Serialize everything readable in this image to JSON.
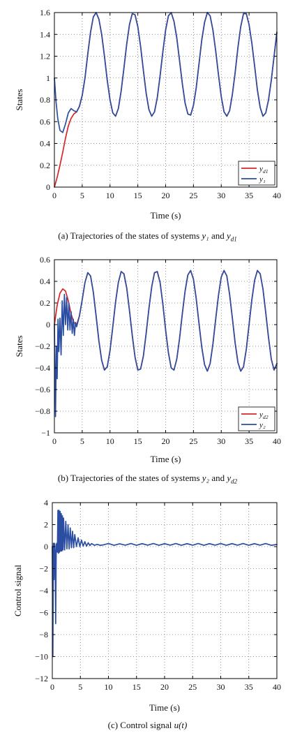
{
  "chart_data": [
    {
      "id": "a",
      "type": "line",
      "title": "",
      "xlabel": "Time (s)",
      "ylabel": "States",
      "xlim": [
        0,
        40
      ],
      "ylim": [
        0,
        1.6
      ],
      "xticks": [
        "0",
        "5",
        "10",
        "15",
        "20",
        "25",
        "30",
        "35",
        "40"
      ],
      "yticks": [
        "0",
        "0.2",
        "0.4",
        "0.6",
        "0.8",
        "1",
        "1.2",
        "1.4",
        "1.6"
      ],
      "grid": true,
      "legend_position": "bottom-right",
      "caption": {
        "prefix": "(a) Trajectories of the states of systems ",
        "sym1": "y₁",
        "mid": " and ",
        "sym2": "y_d1"
      },
      "series": [
        {
          "name": "y_d1",
          "color": "#d62728",
          "x": [
            0,
            0.5,
            1,
            1.5,
            2,
            2.5,
            3,
            3.5,
            4,
            4.5,
            5,
            5.5,
            6,
            6.5,
            7,
            7.5,
            8,
            8.5,
            9,
            9.5,
            10,
            10.5,
            11,
            11.5,
            12,
            12.5,
            13,
            13.5,
            14,
            14.5,
            15,
            15.5,
            16,
            16.5,
            17,
            17.5,
            18,
            18.5,
            19,
            19.5,
            20,
            20.5,
            21,
            21.5,
            22,
            22.5,
            23,
            23.5,
            24,
            24.5,
            25,
            25.5,
            26,
            26.5,
            27,
            27.5,
            28,
            28.5,
            29,
            29.5,
            30,
            30.5,
            31,
            31.5,
            32,
            32.5,
            33,
            33.5,
            34,
            34.5,
            35,
            35.5,
            36,
            36.5,
            37,
            37.5,
            38,
            38.5,
            39,
            39.5,
            40
          ],
          "y": [
            0,
            0.09,
            0.2,
            0.32,
            0.45,
            0.56,
            0.63,
            0.67,
            0.69,
            0.74,
            0.84,
            1.0,
            1.22,
            1.42,
            1.56,
            1.6,
            1.54,
            1.4,
            1.2,
            0.98,
            0.8,
            0.68,
            0.65,
            0.72,
            0.88,
            1.09,
            1.31,
            1.49,
            1.59,
            1.58,
            1.47,
            1.29,
            1.07,
            0.86,
            0.71,
            0.65,
            0.69,
            0.82,
            1.02,
            1.24,
            1.44,
            1.57,
            1.6,
            1.52,
            1.37,
            1.16,
            0.95,
            0.77,
            0.67,
            0.66,
            0.75,
            0.91,
            1.13,
            1.35,
            1.51,
            1.6,
            1.57,
            1.44,
            1.25,
            1.03,
            0.83,
            0.69,
            0.65,
            0.7,
            0.85,
            1.05,
            1.28,
            1.47,
            1.59,
            1.59,
            1.49,
            1.32,
            1.11,
            0.89,
            0.73,
            0.65,
            0.68,
            0.8,
            0.98,
            1.2,
            1.42
          ]
        },
        {
          "name": "y₁",
          "color": "#2b4ea2",
          "x": [
            0,
            0.3,
            0.6,
            1,
            1.5,
            2,
            2.5,
            3,
            3.5,
            4,
            4.5,
            5,
            5.5,
            6,
            6.5,
            7,
            7.5,
            8,
            8.5,
            9,
            9.5,
            10,
            10.5,
            11,
            11.5,
            12,
            12.5,
            13,
            13.5,
            14,
            14.5,
            15,
            15.5,
            16,
            16.5,
            17,
            17.5,
            18,
            18.5,
            19,
            19.5,
            20,
            20.5,
            21,
            21.5,
            22,
            22.5,
            23,
            23.5,
            24,
            24.5,
            25,
            25.5,
            26,
            26.5,
            27,
            27.5,
            28,
            28.5,
            29,
            29.5,
            30,
            30.5,
            31,
            31.5,
            32,
            32.5,
            33,
            33.5,
            34,
            34.5,
            35,
            35.5,
            36,
            36.5,
            37,
            37.5,
            38,
            38.5,
            39,
            39.5,
            40
          ],
          "y": [
            1.0,
            0.78,
            0.63,
            0.52,
            0.5,
            0.58,
            0.68,
            0.72,
            0.7,
            0.69,
            0.74,
            0.84,
            1.0,
            1.22,
            1.42,
            1.56,
            1.6,
            1.54,
            1.4,
            1.2,
            0.98,
            0.8,
            0.68,
            0.65,
            0.72,
            0.88,
            1.09,
            1.31,
            1.49,
            1.59,
            1.58,
            1.47,
            1.29,
            1.07,
            0.86,
            0.71,
            0.65,
            0.69,
            0.82,
            1.02,
            1.24,
            1.44,
            1.57,
            1.6,
            1.52,
            1.37,
            1.16,
            0.95,
            0.77,
            0.67,
            0.66,
            0.75,
            0.91,
            1.13,
            1.35,
            1.51,
            1.6,
            1.57,
            1.44,
            1.25,
            1.03,
            0.83,
            0.69,
            0.65,
            0.7,
            0.85,
            1.05,
            1.28,
            1.47,
            1.59,
            1.59,
            1.49,
            1.32,
            1.11,
            0.89,
            0.73,
            0.65,
            0.68,
            0.8,
            0.98,
            1.2,
            1.42
          ]
        }
      ]
    },
    {
      "id": "b",
      "type": "line",
      "title": "",
      "xlabel": "Time (s)",
      "ylabel": "States",
      "xlim": [
        0,
        40
      ],
      "ylim": [
        -1,
        0.6
      ],
      "xticks": [
        "0",
        "5",
        "10",
        "15",
        "20",
        "25",
        "30",
        "35",
        "40"
      ],
      "yticks": [
        "−1",
        "−0.8",
        "−0.6",
        "−0.4",
        "−0.2",
        "0",
        "0.2",
        "0.4",
        "0.6"
      ],
      "grid": true,
      "legend_position": "bottom-right",
      "caption": {
        "prefix": "(b) Trajectories of the states of systems ",
        "sym1": "y₂",
        "mid": " and ",
        "sym2": "y_d2"
      },
      "series": [
        {
          "name": "y_d2",
          "color": "#d62728",
          "x": [
            0,
            0.5,
            1,
            1.5,
            2,
            2.5,
            3,
            3.5,
            4,
            4.5,
            5,
            5.5,
            6,
            6.5,
            7,
            7.5,
            8,
            8.5,
            9,
            9.5,
            10,
            10.5,
            11,
            11.5,
            12,
            12.5,
            13,
            13.5,
            14,
            14.5,
            15,
            15.5,
            16,
            16.5,
            17,
            17.5,
            18,
            18.5,
            19,
            19.5,
            20,
            20.5,
            21,
            21.5,
            22,
            22.5,
            23,
            23.5,
            24,
            24.5,
            25,
            25.5,
            26,
            26.5,
            27,
            27.5,
            28,
            28.5,
            29,
            29.5,
            30,
            30.5,
            31,
            31.5,
            32,
            32.5,
            33,
            33.5,
            34,
            34.5,
            35,
            35.5,
            36,
            36.5,
            37,
            37.5,
            38,
            38.5,
            39,
            39.5,
            40
          ],
          "y": [
            0,
            0.18,
            0.29,
            0.33,
            0.31,
            0.22,
            0.1,
            0.02,
            0.0,
            0.08,
            0.23,
            0.39,
            0.48,
            0.45,
            0.3,
            0.08,
            -0.15,
            -0.33,
            -0.42,
            -0.39,
            -0.24,
            -0.02,
            0.21,
            0.39,
            0.49,
            0.47,
            0.34,
            0.13,
            -0.1,
            -0.3,
            -0.42,
            -0.41,
            -0.29,
            -0.08,
            0.15,
            0.35,
            0.48,
            0.49,
            0.39,
            0.19,
            -0.05,
            -0.26,
            -0.4,
            -0.42,
            -0.32,
            -0.13,
            0.1,
            0.31,
            0.46,
            0.5,
            0.42,
            0.24,
            0.01,
            -0.21,
            -0.37,
            -0.43,
            -0.36,
            -0.18,
            0.05,
            0.27,
            0.44,
            0.5,
            0.45,
            0.28,
            0.06,
            -0.17,
            -0.35,
            -0.43,
            -0.39,
            -0.23,
            0.0,
            0.23,
            0.41,
            0.5,
            0.47,
            0.33,
            0.11,
            -0.12,
            -0.32,
            -0.42,
            -0.36
          ]
        },
        {
          "name": "y₂",
          "color": "#2b4ea2",
          "x": [
            0,
            0.2,
            0.35,
            0.5,
            0.65,
            0.8,
            1.0,
            1.2,
            1.4,
            1.6,
            1.8,
            2.0,
            2.2,
            2.4,
            2.6,
            2.8,
            3.0,
            3.2,
            3.4,
            3.6,
            3.8,
            4.0,
            4.5,
            5,
            5.5,
            6,
            6.5,
            7,
            7.5,
            8,
            8.5,
            9,
            9.5,
            10,
            10.5,
            11,
            11.5,
            12,
            12.5,
            13,
            13.5,
            14,
            14.5,
            15,
            15.5,
            16,
            16.5,
            17,
            17.5,
            18,
            18.5,
            19,
            19.5,
            20,
            20.5,
            21,
            21.5,
            22,
            22.5,
            23,
            23.5,
            24,
            24.5,
            25,
            25.5,
            26,
            26.5,
            27,
            27.5,
            28,
            28.5,
            29,
            29.5,
            30,
            30.5,
            31,
            31.5,
            32,
            32.5,
            33,
            33.5,
            34,
            34.5,
            35,
            35.5,
            36,
            36.5,
            37,
            37.5,
            38,
            38.5,
            39,
            39.5,
            40
          ],
          "y": [
            0,
            -0.85,
            -0.2,
            -0.5,
            0.05,
            -0.25,
            0.06,
            -0.28,
            0.22,
            -0.1,
            0.28,
            0.0,
            0.25,
            -0.05,
            0.2,
            -0.05,
            0.12,
            -0.08,
            0.05,
            -0.1,
            0.02,
            -0.02,
            0.08,
            0.23,
            0.39,
            0.48,
            0.45,
            0.3,
            0.08,
            -0.15,
            -0.33,
            -0.42,
            -0.39,
            -0.24,
            -0.02,
            0.21,
            0.39,
            0.49,
            0.47,
            0.34,
            0.13,
            -0.1,
            -0.3,
            -0.42,
            -0.41,
            -0.29,
            -0.08,
            0.15,
            0.35,
            0.48,
            0.49,
            0.39,
            0.19,
            -0.05,
            -0.26,
            -0.4,
            -0.42,
            -0.32,
            -0.13,
            0.1,
            0.31,
            0.46,
            0.5,
            0.42,
            0.24,
            0.01,
            -0.21,
            -0.37,
            -0.43,
            -0.36,
            -0.18,
            0.05,
            0.27,
            0.44,
            0.5,
            0.45,
            0.28,
            0.06,
            -0.17,
            -0.35,
            -0.43,
            -0.39,
            -0.23,
            0.0,
            0.23,
            0.41,
            0.5,
            0.47,
            0.33,
            0.11,
            -0.12,
            -0.32,
            -0.42,
            -0.36
          ]
        }
      ]
    },
    {
      "id": "c",
      "type": "line",
      "title": "",
      "xlabel": "Time (s)",
      "ylabel": "Control signal",
      "xlim": [
        0,
        40
      ],
      "ylim": [
        -12,
        4
      ],
      "xticks": [
        "0",
        "5",
        "10",
        "15",
        "20",
        "25",
        "30",
        "35",
        "40"
      ],
      "yticks": [
        "−12",
        "−10",
        "−8",
        "−6",
        "−4",
        "−2",
        "0",
        "2",
        "4"
      ],
      "grid": true,
      "legend_position": "none",
      "caption": {
        "prefix": "(c) Control signal ",
        "sym1": "u(t)",
        "mid": "",
        "sym2": ""
      },
      "series": [
        {
          "name": "",
          "color": "#2b4ea2",
          "x": [
            0,
            0.1,
            0.2,
            0.3,
            0.4,
            0.5,
            0.6,
            0.7,
            0.8,
            0.9,
            1.0,
            1.1,
            1.2,
            1.3,
            1.4,
            1.5,
            1.6,
            1.7,
            1.8,
            1.9,
            2.0,
            2.2,
            2.4,
            2.6,
            2.8,
            3.0,
            3.2,
            3.4,
            3.6,
            3.8,
            4.0,
            4.3,
            4.6,
            4.9,
            5.2,
            5.5,
            5.8,
            6.1,
            6.4,
            6.7,
            7.0,
            7.5,
            8,
            8.5,
            9,
            10,
            11,
            12,
            13,
            14,
            15,
            16,
            17,
            18,
            19,
            20,
            21,
            22,
            23,
            24,
            25,
            26,
            27,
            28,
            29,
            30,
            31,
            32,
            33,
            34,
            35,
            36,
            37,
            38,
            39,
            40
          ],
          "y": [
            0,
            -10,
            0.3,
            -3,
            0.3,
            -0.5,
            -7,
            0.2,
            0.3,
            -0.5,
            3.3,
            -0.6,
            3.3,
            -0.5,
            3.2,
            -0.4,
            3.0,
            -0.4,
            2.8,
            -0.3,
            2.6,
            -0.3,
            2.3,
            -0.2,
            2.0,
            -0.2,
            1.7,
            -0.1,
            1.4,
            -0.1,
            1.1,
            0.0,
            0.8,
            0.0,
            0.6,
            0.05,
            0.45,
            0.05,
            0.35,
            0.1,
            0.28,
            0.12,
            0.2,
            0.12,
            0.15,
            0.28,
            0.12,
            0.26,
            0.13,
            0.28,
            0.12,
            0.27,
            0.13,
            0.28,
            0.12,
            0.27,
            0.13,
            0.28,
            0.12,
            0.27,
            0.13,
            0.28,
            0.12,
            0.27,
            0.13,
            0.28,
            0.12,
            0.27,
            0.13,
            0.28,
            0.12,
            0.27,
            0.13,
            0.28,
            0.12,
            0.2
          ]
        }
      ]
    }
  ]
}
